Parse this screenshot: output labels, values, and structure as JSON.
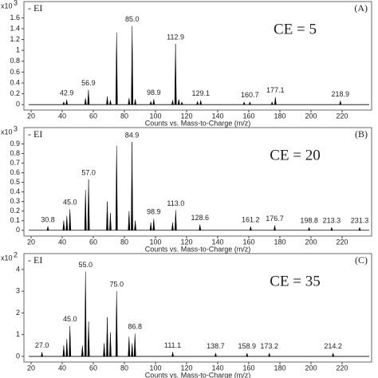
{
  "chart_data": [
    {
      "type": "spectrum",
      "panel_label": "(A)",
      "ion_mode": "- EI",
      "annotation": "CE = 5",
      "y_multiplier": "x10",
      "y_exponent": 3,
      "xlabel": "Counts vs. Mass-to-Charge (m/z)",
      "color": "#000000",
      "xlim": [
        15.4,
        239
      ],
      "xticks": [
        20,
        40,
        60,
        80,
        100,
        120,
        140,
        160,
        180,
        200,
        220
      ],
      "ylim": [
        -0.1,
        1.9
      ],
      "yticks": [
        0,
        0.2,
        0.4,
        0.6,
        0.8,
        1,
        1.2,
        1.4,
        1.6
      ],
      "x": [
        41,
        42.9,
        55,
        56.9,
        69,
        71,
        75,
        83,
        85,
        87,
        97,
        98.9,
        111,
        112.9,
        115,
        117,
        127,
        129.1,
        157,
        160.7,
        175,
        177.1,
        218.9
      ],
      "values": [
        0.05,
        0.09,
        0.12,
        0.27,
        0.15,
        0.08,
        1.33,
        0.12,
        1.45,
        0.1,
        0.06,
        0.1,
        0.08,
        1.12,
        0.1,
        0.05,
        0.06,
        0.08,
        0.05,
        0.05,
        0.05,
        0.14,
        0.07
      ],
      "x_labels": [
        null,
        "42.9",
        null,
        "56.9",
        null,
        null,
        null,
        null,
        "85.0",
        null,
        null,
        "98.9",
        null,
        "112.9",
        null,
        null,
        null,
        "129.1",
        null,
        "160.7",
        null,
        "177.1",
        "218.9"
      ]
    },
    {
      "type": "spectrum",
      "panel_label": "(B)",
      "ion_mode": "- EI",
      "annotation": "CE = 20",
      "y_multiplier": "x10",
      "y_exponent": 3,
      "xlabel": "Counts vs. Mass-to-Charge (m/z)",
      "color": "#000000",
      "xlim": [
        15.4,
        239
      ],
      "xticks": [
        20,
        40,
        60,
        80,
        100,
        120,
        140,
        160,
        180,
        200,
        220
      ],
      "ylim": [
        -0.06,
        1.07
      ],
      "yticks": [
        0,
        0.1,
        0.2,
        0.3,
        0.4,
        0.5,
        0.6,
        0.7,
        0.8,
        0.9
      ],
      "x": [
        30.8,
        41,
        43,
        45,
        55,
        57,
        69,
        71,
        75,
        83,
        84.9,
        87,
        97,
        98.9,
        111,
        113,
        128.6,
        161.2,
        176.7,
        198.8,
        213.3,
        231.3
      ],
      "values": [
        0.04,
        0.1,
        0.15,
        0.22,
        0.42,
        0.53,
        0.3,
        0.18,
        0.88,
        0.2,
        0.92,
        0.1,
        0.08,
        0.12,
        0.08,
        0.21,
        0.06,
        0.04,
        0.05,
        0.03,
        0.03,
        0.03
      ],
      "x_labels": [
        "30.8",
        null,
        null,
        "45.0",
        null,
        "57.0",
        null,
        null,
        null,
        null,
        "84.9",
        null,
        null,
        "98.9",
        null,
        "113.0",
        "128.6",
        "161.2",
        "176.7",
        "198.8",
        "213.3",
        "231.3"
      ]
    },
    {
      "type": "spectrum",
      "panel_label": "(C)",
      "ion_mode": "- EI",
      "annotation": "CE = 35",
      "y_multiplier": "x10",
      "y_exponent": 2,
      "xlabel": "Counts vs. Mass-to-Charge (m/z)",
      "color": "#000000",
      "xlim": [
        15.4,
        239
      ],
      "xticks": [
        20,
        40,
        60,
        80,
        100,
        120,
        140,
        160,
        180,
        200,
        220
      ],
      "ylim": [
        -0.26,
        4.73
      ],
      "yticks": [
        0,
        1,
        2,
        3,
        4
      ],
      "x": [
        27,
        41,
        43,
        45,
        53,
        55,
        57,
        67,
        69,
        71,
        75,
        83,
        85,
        86.8,
        111.1,
        138.7,
        158.9,
        173.2,
        214.2
      ],
      "values": [
        0.2,
        0.5,
        0.8,
        1.4,
        0.5,
        3.9,
        1.6,
        0.6,
        1.8,
        1.1,
        3.0,
        0.9,
        0.6,
        1.05,
        0.2,
        0.15,
        0.15,
        0.15,
        0.15
      ],
      "x_labels": [
        "27.0",
        null,
        null,
        "45.0",
        null,
        "55.0",
        null,
        null,
        null,
        null,
        "75.0",
        null,
        null,
        "86.8",
        "111.1",
        "138.7",
        "158.9",
        "173.2",
        "214.2"
      ]
    }
  ]
}
